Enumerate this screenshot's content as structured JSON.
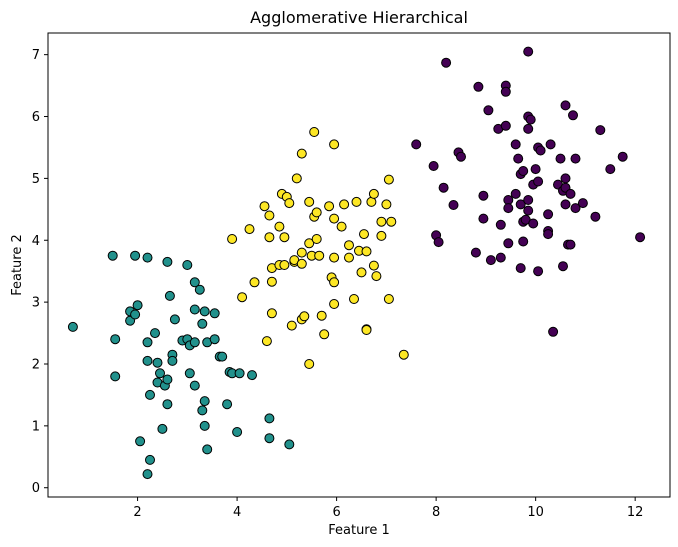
{
  "chart_data": {
    "type": "scatter",
    "title": "Agglomerative Hierarchical",
    "xlabel": "Feature 1",
    "ylabel": "Feature 2",
    "xlim": [
      0.2,
      12.7
    ],
    "ylim": [
      -0.15,
      7.35
    ],
    "xticks": [
      2,
      4,
      6,
      8,
      10,
      12
    ],
    "yticks": [
      0,
      1,
      2,
      3,
      4,
      5,
      6,
      7
    ],
    "grid": false,
    "marker_edge_color": "#000000",
    "series": [
      {
        "color": "#21918c",
        "points": [
          [
            0.7,
            2.6
          ],
          [
            1.5,
            3.75
          ],
          [
            1.55,
            2.4
          ],
          [
            1.55,
            1.8
          ],
          [
            1.85,
            2.85
          ],
          [
            1.85,
            2.7
          ],
          [
            1.95,
            3.75
          ],
          [
            2.0,
            2.95
          ],
          [
            1.95,
            2.8
          ],
          [
            2.05,
            0.75
          ],
          [
            2.2,
            3.72
          ],
          [
            2.2,
            2.35
          ],
          [
            2.2,
            2.05
          ],
          [
            2.25,
            1.5
          ],
          [
            2.2,
            0.22
          ],
          [
            2.25,
            0.45
          ],
          [
            2.35,
            2.5
          ],
          [
            2.4,
            2.02
          ],
          [
            2.45,
            1.85
          ],
          [
            2.4,
            1.7
          ],
          [
            2.55,
            1.65
          ],
          [
            2.6,
            3.65
          ],
          [
            2.65,
            3.1
          ],
          [
            2.6,
            1.75
          ],
          [
            2.6,
            1.35
          ],
          [
            2.5,
            0.95
          ],
          [
            2.7,
            2.15
          ],
          [
            2.7,
            2.05
          ],
          [
            2.75,
            2.72
          ],
          [
            2.9,
            2.38
          ],
          [
            3.0,
            3.6
          ],
          [
            3.0,
            2.4
          ],
          [
            3.05,
            2.3
          ],
          [
            3.05,
            1.85
          ],
          [
            3.15,
            3.32
          ],
          [
            3.15,
            2.88
          ],
          [
            3.15,
            2.35
          ],
          [
            3.15,
            1.65
          ],
          [
            3.25,
            3.2
          ],
          [
            3.3,
            2.65
          ],
          [
            3.35,
            2.85
          ],
          [
            3.3,
            1.25
          ],
          [
            3.35,
            1.4
          ],
          [
            3.35,
            1.0
          ],
          [
            3.4,
            2.35
          ],
          [
            3.4,
            0.62
          ],
          [
            3.55,
            2.82
          ],
          [
            3.55,
            2.4
          ],
          [
            3.65,
            2.12
          ],
          [
            3.7,
            2.12
          ],
          [
            3.8,
            1.35
          ],
          [
            3.85,
            1.87
          ],
          [
            3.9,
            1.85
          ],
          [
            4.0,
            0.9
          ],
          [
            4.05,
            1.85
          ],
          [
            4.3,
            1.82
          ],
          [
            4.65,
            1.12
          ],
          [
            4.65,
            0.8
          ],
          [
            5.05,
            0.7
          ]
        ]
      },
      {
        "color": "#fde725",
        "points": [
          [
            3.9,
            4.02
          ],
          [
            4.1,
            3.08
          ],
          [
            4.25,
            4.18
          ],
          [
            4.35,
            3.32
          ],
          [
            4.55,
            4.55
          ],
          [
            4.6,
            2.37
          ],
          [
            4.65,
            4.05
          ],
          [
            4.65,
            4.4
          ],
          [
            4.7,
            3.55
          ],
          [
            4.7,
            3.33
          ],
          [
            4.7,
            2.82
          ],
          [
            4.85,
            4.22
          ],
          [
            4.85,
            3.6
          ],
          [
            4.9,
            4.75
          ],
          [
            4.95,
            3.6
          ],
          [
            5.0,
            4.7
          ],
          [
            4.95,
            4.05
          ],
          [
            5.05,
            4.6
          ],
          [
            5.1,
            2.62
          ],
          [
            5.15,
            3.65
          ],
          [
            5.15,
            3.68
          ],
          [
            5.2,
            5.0
          ],
          [
            5.3,
            5.4
          ],
          [
            5.3,
            3.8
          ],
          [
            5.3,
            3.62
          ],
          [
            5.3,
            2.72
          ],
          [
            5.35,
            2.77
          ],
          [
            5.45,
            4.62
          ],
          [
            5.45,
            3.95
          ],
          [
            5.45,
            2.0
          ],
          [
            5.5,
            3.75
          ],
          [
            5.55,
            4.38
          ],
          [
            5.55,
            5.75
          ],
          [
            5.6,
            4.45
          ],
          [
            5.6,
            4.02
          ],
          [
            5.65,
            3.75
          ],
          [
            5.7,
            2.78
          ],
          [
            5.75,
            2.48
          ],
          [
            5.85,
            4.55
          ],
          [
            5.9,
            3.4
          ],
          [
            5.95,
            5.55
          ],
          [
            5.95,
            4.35
          ],
          [
            5.95,
            3.72
          ],
          [
            5.95,
            3.32
          ],
          [
            5.95,
            2.97
          ],
          [
            6.1,
            4.22
          ],
          [
            6.15,
            4.58
          ],
          [
            6.25,
            3.92
          ],
          [
            6.25,
            3.72
          ],
          [
            6.35,
            3.05
          ],
          [
            6.4,
            4.62
          ],
          [
            6.45,
            3.83
          ],
          [
            6.5,
            3.48
          ],
          [
            6.55,
            4.1
          ],
          [
            6.6,
            3.82
          ],
          [
            6.6,
            2.56
          ],
          [
            6.6,
            2.55
          ],
          [
            6.7,
            4.62
          ],
          [
            6.75,
            4.75
          ],
          [
            6.75,
            3.59
          ],
          [
            6.8,
            3.42
          ],
          [
            6.9,
            4.3
          ],
          [
            6.9,
            4.07
          ],
          [
            7.0,
            4.58
          ],
          [
            7.05,
            4.98
          ],
          [
            7.05,
            3.05
          ],
          [
            7.1,
            4.3
          ],
          [
            7.35,
            2.15
          ]
        ]
      },
      {
        "color": "#440154",
        "points": [
          [
            7.6,
            5.55
          ],
          [
            7.95,
            5.2
          ],
          [
            8.0,
            4.08
          ],
          [
            8.05,
            3.97
          ],
          [
            8.15,
            4.85
          ],
          [
            8.2,
            6.87
          ],
          [
            8.35,
            4.57
          ],
          [
            8.45,
            5.42
          ],
          [
            8.5,
            5.35
          ],
          [
            8.8,
            3.8
          ],
          [
            8.85,
            6.48
          ],
          [
            8.95,
            4.72
          ],
          [
            8.95,
            4.35
          ],
          [
            9.05,
            6.1
          ],
          [
            9.1,
            3.68
          ],
          [
            9.25,
            5.8
          ],
          [
            9.3,
            4.25
          ],
          [
            9.3,
            3.72
          ],
          [
            9.4,
            6.5
          ],
          [
            9.4,
            6.4
          ],
          [
            9.4,
            5.85
          ],
          [
            9.45,
            4.65
          ],
          [
            9.45,
            4.52
          ],
          [
            9.45,
            3.95
          ],
          [
            9.6,
            5.55
          ],
          [
            9.6,
            4.75
          ],
          [
            9.65,
            5.32
          ],
          [
            9.7,
            5.07
          ],
          [
            9.7,
            4.58
          ],
          [
            9.7,
            3.55
          ],
          [
            9.75,
            5.12
          ],
          [
            9.75,
            4.3
          ],
          [
            9.75,
            3.98
          ],
          [
            9.8,
            4.33
          ],
          [
            9.85,
            7.05
          ],
          [
            9.85,
            6.0
          ],
          [
            9.85,
            5.8
          ],
          [
            9.85,
            4.65
          ],
          [
            9.85,
            4.48
          ],
          [
            9.9,
            5.95
          ],
          [
            9.95,
            4.9
          ],
          [
            9.95,
            4.27
          ],
          [
            10.0,
            5.15
          ],
          [
            10.05,
            5.5
          ],
          [
            10.05,
            4.95
          ],
          [
            10.05,
            3.5
          ],
          [
            10.1,
            5.45
          ],
          [
            10.25,
            4.42
          ],
          [
            10.25,
            4.15
          ],
          [
            10.25,
            4.1
          ],
          [
            10.3,
            5.55
          ],
          [
            10.35,
            2.52
          ],
          [
            10.45,
            4.9
          ],
          [
            10.5,
            5.32
          ],
          [
            10.55,
            4.8
          ],
          [
            10.55,
            3.58
          ],
          [
            10.6,
            6.18
          ],
          [
            10.6,
            4.85
          ],
          [
            10.6,
            4.58
          ],
          [
            10.6,
            5.0
          ],
          [
            10.65,
            3.93
          ],
          [
            10.7,
            3.93
          ],
          [
            10.7,
            4.75
          ],
          [
            10.75,
            6.02
          ],
          [
            10.8,
            5.32
          ],
          [
            10.8,
            4.52
          ],
          [
            10.95,
            4.6
          ],
          [
            11.2,
            4.38
          ],
          [
            11.3,
            5.78
          ],
          [
            11.5,
            5.15
          ],
          [
            11.75,
            5.35
          ],
          [
            12.1,
            4.05
          ]
        ]
      }
    ]
  }
}
